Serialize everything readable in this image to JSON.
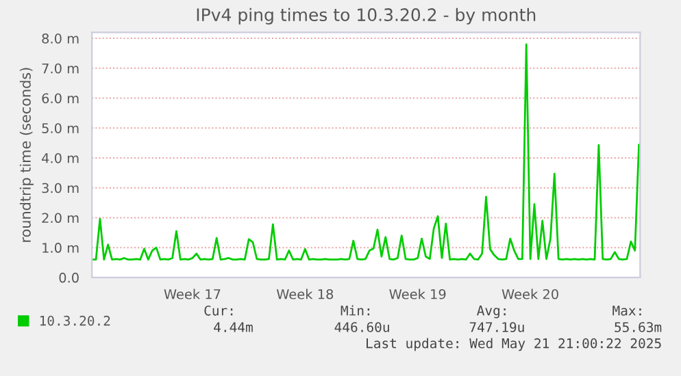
{
  "chart_data": {
    "type": "line",
    "title": "IPv4 ping times to 10.3.20.2 - by month",
    "ylabel": "roundtrip time (seconds)",
    "categories": [
      null,
      null,
      null,
      null,
      null,
      null,
      null,
      null,
      null,
      null,
      null,
      null,
      null,
      null,
      null,
      null,
      null,
      null,
      null,
      null,
      null,
      null,
      null,
      null,
      null,
      "Week 17",
      null,
      null,
      null,
      null,
      null,
      null,
      null,
      null,
      null,
      null,
      null,
      null,
      null,
      null,
      null,
      null,
      null,
      null,
      null,
      null,
      null,
      null,
      null,
      null,
      null,
      null,
      null,
      "Week 18",
      null,
      null,
      null,
      null,
      null,
      null,
      null,
      null,
      null,
      null,
      null,
      null,
      null,
      null,
      null,
      null,
      null,
      null,
      null,
      null,
      null,
      null,
      null,
      null,
      null,
      null,
      null,
      "Week 19",
      null,
      null,
      null,
      null,
      null,
      null,
      null,
      null,
      null,
      null,
      null,
      null,
      null,
      null,
      null,
      null,
      null,
      null,
      null,
      null,
      null,
      null,
      null,
      null,
      null,
      null,
      null,
      "Week 20",
      null,
      null,
      null,
      null,
      null,
      null,
      null,
      null,
      null,
      null,
      null,
      null,
      null,
      null,
      null,
      null,
      null,
      null,
      null,
      null,
      null,
      null,
      null,
      null,
      null,
      null,
      null
    ],
    "series": [
      {
        "name": "10.3.20.2",
        "color": "#00cc00",
        "values": [
          0.6,
          0.6,
          1.96,
          0.6,
          1.1,
          0.6,
          0.62,
          0.6,
          0.65,
          0.6,
          0.6,
          0.62,
          0.6,
          0.96,
          0.6,
          0.9,
          1.0,
          0.6,
          0.62,
          0.6,
          0.65,
          1.55,
          0.6,
          0.62,
          0.6,
          0.65,
          0.8,
          0.6,
          0.62,
          0.6,
          0.62,
          1.32,
          0.6,
          0.62,
          0.65,
          0.6,
          0.6,
          0.62,
          0.6,
          1.28,
          1.18,
          0.62,
          0.6,
          0.6,
          0.62,
          1.78,
          0.6,
          0.62,
          0.6,
          0.9,
          0.6,
          0.62,
          0.6,
          0.95,
          0.6,
          0.62,
          0.6,
          0.6,
          0.62,
          0.6,
          0.6,
          0.6,
          0.62,
          0.6,
          0.62,
          1.23,
          0.62,
          0.6,
          0.62,
          0.9,
          0.97,
          1.6,
          0.7,
          1.35,
          0.62,
          0.6,
          0.65,
          1.4,
          0.62,
          0.6,
          0.6,
          0.65,
          1.3,
          0.7,
          0.62,
          1.64,
          2.05,
          0.65,
          1.8,
          0.6,
          0.62,
          0.6,
          0.62,
          0.6,
          0.8,
          0.62,
          0.6,
          0.8,
          2.7,
          0.95,
          0.75,
          0.62,
          0.6,
          0.62,
          1.3,
          0.9,
          0.62,
          0.62,
          7.8,
          0.62,
          2.45,
          0.62,
          1.9,
          0.62,
          1.3,
          3.47,
          0.62,
          0.6,
          0.62,
          0.6,
          0.62,
          0.6,
          0.62,
          0.6,
          0.62,
          0.6,
          4.43,
          0.62,
          0.6,
          0.62,
          0.85,
          0.62,
          0.6,
          0.62,
          1.2,
          0.9,
          4.44
        ]
      }
    ],
    "ylim": [
      0,
      8.2
    ],
    "yticks": [
      {
        "value": 0,
        "label": "0.0"
      },
      {
        "value": 1,
        "label": "1.0 m"
      },
      {
        "value": 2,
        "label": "2.0 m"
      },
      {
        "value": 3,
        "label": "3.0 m"
      },
      {
        "value": 4,
        "label": "4.0 m"
      },
      {
        "value": 5,
        "label": "5.0 m"
      },
      {
        "value": 6,
        "label": "6.0 m"
      },
      {
        "value": 7,
        "label": "7.0 m"
      },
      {
        "value": 8,
        "label": "8.0 m"
      }
    ],
    "grid": "y",
    "legend": "bottom left",
    "marker": "none",
    "line_style": "solid",
    "annotations": [
      "Cur:",
      "Min:",
      "Avg:",
      "Max:",
      "4.44m",
      "446.60u",
      "747.19u",
      "55.63m",
      "Last update: Wed May 21 21:00:22 2025"
    ]
  }
}
